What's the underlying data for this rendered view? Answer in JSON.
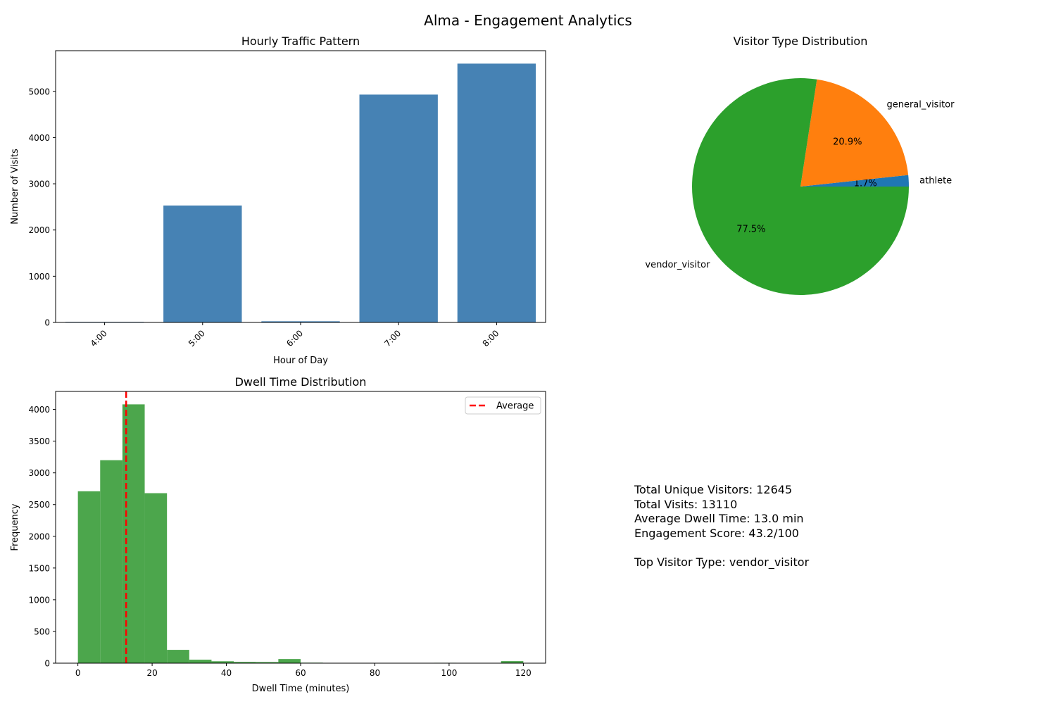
{
  "figure_title": "Alma - Engagement Analytics",
  "chart_data": [
    {
      "type": "bar",
      "title": "Hourly Traffic Pattern",
      "xlabel": "Hour of Day",
      "ylabel": "Number of Visits",
      "categories": [
        "4:00",
        "5:00",
        "6:00",
        "7:00",
        "8:00"
      ],
      "values": [
        12,
        2530,
        25,
        4930,
        5600
      ],
      "ylim": [
        0,
        5880
      ],
      "yticks": [
        0,
        1000,
        2000,
        3000,
        4000,
        5000
      ],
      "color": "#4682b4"
    },
    {
      "type": "pie",
      "title": "Visitor Type Distribution",
      "labels": [
        "athlete",
        "general_visitor",
        "vendor_visitor"
      ],
      "values": [
        1.7,
        20.9,
        77.5
      ],
      "pct_labels": [
        "1.7%",
        "20.9%",
        "77.5%"
      ],
      "colors": [
        "#1f77b4",
        "#ff7f0e",
        "#2ca02c"
      ]
    },
    {
      "type": "histogram",
      "title": "Dwell Time Distribution",
      "xlabel": "Dwell Time (minutes)",
      "ylabel": "Frequency",
      "bin_start": 0,
      "bin_width": 6,
      "counts": [
        2710,
        3200,
        4080,
        2680,
        210,
        55,
        30,
        20,
        18,
        65,
        8,
        5,
        5,
        3,
        2,
        4,
        6,
        2,
        5,
        32
      ],
      "xlim": [
        -6,
        126
      ],
      "ylim": [
        0,
        4284
      ],
      "xticks": [
        0,
        20,
        40,
        60,
        80,
        100,
        120
      ],
      "yticks": [
        0,
        500,
        1000,
        1500,
        2000,
        2500,
        3000,
        3500,
        4000
      ],
      "average": 13.0,
      "legend": "Average",
      "bar_color": "#4ca64c",
      "avg_color": "#ff0000"
    }
  ],
  "stats": {
    "line1": "Total Unique Visitors: 12645",
    "line2": "Total Visits: 13110",
    "line3": "Average Dwell Time: 13.0 min",
    "line4": "Engagement Score: 43.2/100",
    "line5": "",
    "line6": "Top Visitor Type: vendor_visitor"
  }
}
